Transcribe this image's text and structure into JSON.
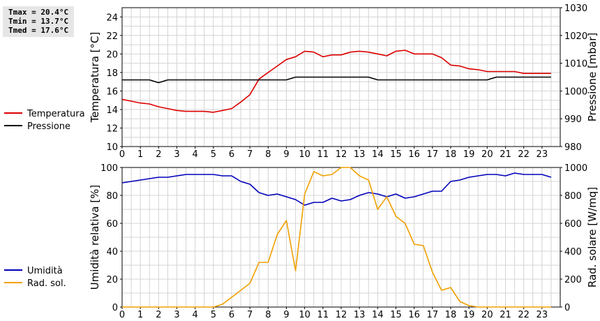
{
  "stats": {
    "tmax": "Tmax = 20.4°C",
    "tmin": "Tmin = 13.7°C",
    "tmed": "Tmed = 17.6°C"
  },
  "colors": {
    "temperatura": "#dd0000",
    "pressione": "#000000",
    "umidita": "#0000bb",
    "radsol": "#f0a000",
    "grid": "#d4d4d4"
  },
  "chart_data": [
    {
      "type": "line",
      "x_ticks": [
        "0",
        "1",
        "2",
        "3",
        "4",
        "5",
        "6",
        "7",
        "8",
        "9",
        "10",
        "11",
        "12",
        "13",
        "14",
        "15",
        "16",
        "17",
        "18",
        "19",
        "20",
        "21",
        "22",
        "23"
      ],
      "xlim": [
        0,
        24
      ],
      "ylabel": "Temperatura [°C]",
      "ylim": [
        10,
        25
      ],
      "y_ticks": [
        "10",
        "12",
        "14",
        "16",
        "18",
        "20",
        "22",
        "24"
      ],
      "y2label": "Pressione [mbar]",
      "y2lim": [
        980,
        1030
      ],
      "y2_ticks": [
        "980",
        "990",
        "1000",
        "1010",
        "1020",
        "1030"
      ],
      "grid": true,
      "legend_position": "left",
      "series": [
        {
          "name": "Temperatura",
          "axis": "left",
          "x": [
            0,
            0.5,
            1,
            1.5,
            2,
            2.5,
            3,
            3.5,
            4,
            4.5,
            5,
            5.5,
            6,
            6.5,
            7,
            7.5,
            8,
            8.5,
            9,
            9.5,
            10,
            10.5,
            11,
            11.5,
            12,
            12.5,
            13,
            13.5,
            14,
            14.5,
            15,
            15.5,
            16,
            16.5,
            17,
            17.5,
            18,
            18.5,
            19,
            19.5,
            20,
            20.5,
            21,
            21.5,
            22,
            22.5,
            23,
            23.5
          ],
          "values": [
            15.1,
            14.9,
            14.7,
            14.6,
            14.3,
            14.1,
            13.9,
            13.8,
            13.8,
            13.8,
            13.7,
            13.9,
            14.1,
            14.8,
            15.6,
            17.3,
            18.0,
            18.7,
            19.4,
            19.7,
            20.3,
            20.2,
            19.7,
            19.9,
            19.9,
            20.2,
            20.3,
            20.2,
            20.0,
            19.8,
            20.3,
            20.4,
            20.0,
            20.0,
            20.0,
            19.6,
            18.8,
            18.7,
            18.4,
            18.3,
            18.1,
            18.1,
            18.1,
            18.1,
            17.9,
            17.9,
            17.9,
            17.9
          ]
        },
        {
          "name": "Pressione",
          "axis": "right",
          "x": [
            0,
            0.5,
            1,
            1.5,
            2,
            2.5,
            3,
            3.5,
            4,
            4.5,
            5,
            5.5,
            6,
            6.5,
            7,
            7.5,
            8,
            8.5,
            9,
            9.5,
            10,
            10.5,
            11,
            11.5,
            12,
            12.5,
            13,
            13.5,
            14,
            14.5,
            15,
            15.5,
            16,
            16.5,
            17,
            17.5,
            18,
            18.5,
            19,
            19.5,
            20,
            20.5,
            21,
            21.5,
            22,
            22.5,
            23,
            23.5
          ],
          "values": [
            1004,
            1004,
            1004,
            1004,
            1003,
            1004,
            1004,
            1004,
            1004,
            1004,
            1004,
            1004,
            1004,
            1004,
            1004,
            1004,
            1004,
            1004,
            1004,
            1005,
            1005,
            1005,
            1005,
            1005,
            1005,
            1005,
            1005,
            1005,
            1004,
            1004,
            1004,
            1004,
            1004,
            1004,
            1004,
            1004,
            1004,
            1004,
            1004,
            1004,
            1004,
            1005,
            1005,
            1005,
            1005,
            1005,
            1005,
            1005
          ]
        }
      ]
    },
    {
      "type": "line",
      "x_ticks": [
        "0",
        "1",
        "2",
        "3",
        "4",
        "5",
        "6",
        "7",
        "8",
        "9",
        "10",
        "11",
        "12",
        "13",
        "14",
        "15",
        "16",
        "17",
        "18",
        "19",
        "20",
        "21",
        "22",
        "23"
      ],
      "xlim": [
        0,
        24
      ],
      "ylabel": "Umidità relativa [%]",
      "ylim": [
        0,
        100
      ],
      "y_ticks": [
        "0",
        "20",
        "40",
        "60",
        "80",
        "100"
      ],
      "y2label": "Rad. solare [W/mq]",
      "y2lim": [
        0,
        1000
      ],
      "y2_ticks": [
        "0",
        "200",
        "400",
        "600",
        "800",
        "1000"
      ],
      "grid": true,
      "legend_position": "left",
      "series": [
        {
          "name": "Umidità",
          "axis": "left",
          "x": [
            0,
            0.5,
            1,
            1.5,
            2,
            2.5,
            3,
            3.5,
            4,
            4.5,
            5,
            5.5,
            6,
            6.5,
            7,
            7.5,
            8,
            8.5,
            9,
            9.5,
            10,
            10.5,
            11,
            11.5,
            12,
            12.5,
            13,
            13.5,
            14,
            14.5,
            15,
            15.5,
            16,
            16.5,
            17,
            17.5,
            18,
            18.5,
            19,
            19.5,
            20,
            20.5,
            21,
            21.5,
            22,
            22.5,
            23,
            23.5
          ],
          "values": [
            89,
            90,
            91,
            92,
            93,
            93,
            94,
            95,
            95,
            95,
            95,
            94,
            94,
            90,
            88,
            82,
            80,
            81,
            79,
            77,
            73,
            75,
            75,
            78,
            76,
            77,
            80,
            82,
            81,
            79,
            81,
            78,
            79,
            81,
            83,
            83,
            90,
            91,
            93,
            94,
            95,
            95,
            94,
            96,
            95,
            95,
            95,
            93
          ]
        },
        {
          "name": "Rad. sol.",
          "axis": "right",
          "x": [
            0,
            0.5,
            1,
            1.5,
            2,
            2.5,
            3,
            3.5,
            4,
            4.5,
            5,
            5.5,
            6,
            6.5,
            7,
            7.5,
            8,
            8.5,
            9,
            9.5,
            10,
            10.5,
            11,
            11.5,
            12,
            12.5,
            13,
            13.5,
            14,
            14.5,
            15,
            15.5,
            16,
            16.5,
            17,
            17.5,
            18,
            18.5,
            19,
            19.5,
            20,
            20.5,
            21,
            21.5,
            22,
            22.5,
            23,
            23.5
          ],
          "values": [
            0,
            0,
            0,
            0,
            0,
            0,
            0,
            0,
            0,
            0,
            0,
            20,
            70,
            120,
            170,
            320,
            320,
            520,
            620,
            260,
            810,
            970,
            940,
            950,
            1010,
            1010,
            940,
            910,
            700,
            790,
            650,
            600,
            450,
            440,
            250,
            120,
            140,
            40,
            10,
            0,
            0,
            0,
            0,
            0,
            0,
            0,
            0,
            0
          ]
        }
      ]
    }
  ]
}
